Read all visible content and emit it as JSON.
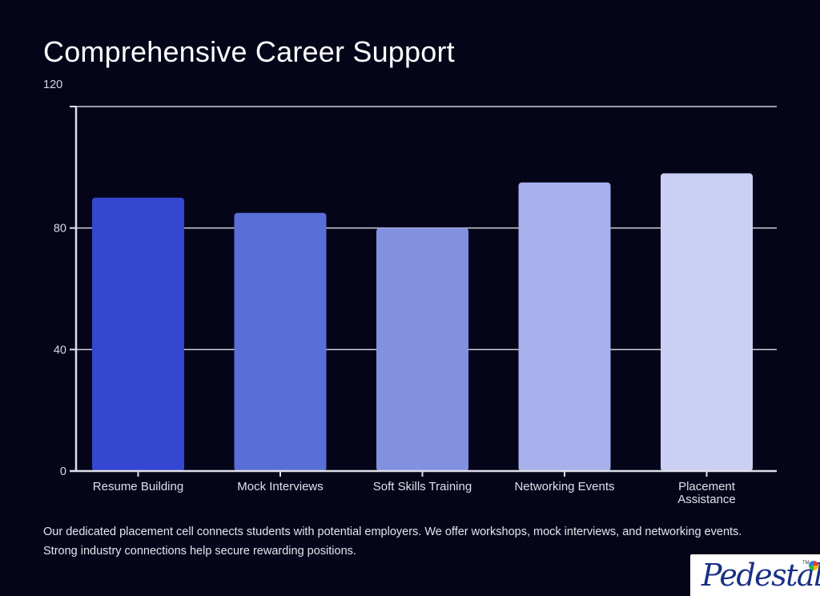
{
  "chart_data": {
    "type": "bar",
    "title": "Comprehensive Career Support",
    "categories": [
      "Resume Building",
      "Mock Interviews",
      "Soft Skills Training",
      "Networking Events",
      "Placement Assistance"
    ],
    "category_lines": [
      [
        "Resume Building"
      ],
      [
        "Mock Interviews"
      ],
      [
        "Soft Skills Training"
      ],
      [
        "Networking Events"
      ],
      [
        "Placement",
        "Assistance"
      ]
    ],
    "values": [
      90,
      85,
      80,
      95,
      98
    ],
    "ylim": [
      0,
      120
    ],
    "yticks": [
      0,
      40,
      80,
      120
    ],
    "xlabel": "",
    "ylabel": "",
    "grid": true,
    "bar_colors": [
      "#3547d0",
      "#5a6ed8",
      "#8290e0",
      "#a6b0ea",
      "#cbcff3"
    ],
    "axis_color": "#e0e0ea",
    "grid_color": "#d0d0dc"
  },
  "description": "Our dedicated placement cell connects students with potential employers. We offer workshops, mock interviews, and networking events. Strong industry connections help secure rewarding positions.",
  "logo": {
    "text": "Pedestal",
    "mark": "TM"
  }
}
